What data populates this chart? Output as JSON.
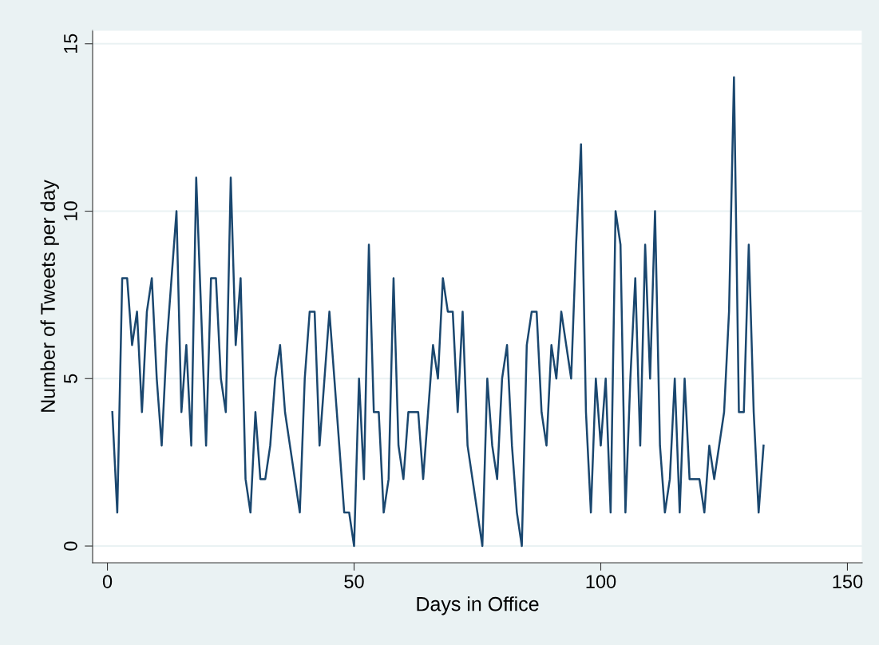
{
  "chart_data": {
    "type": "line",
    "xlabel": "Days in Office",
    "ylabel": "Number of Tweets per day",
    "x": [
      1,
      2,
      3,
      4,
      5,
      6,
      7,
      8,
      9,
      10,
      11,
      12,
      13,
      14,
      15,
      16,
      17,
      18,
      19,
      20,
      21,
      22,
      23,
      24,
      25,
      26,
      27,
      28,
      29,
      30,
      31,
      32,
      33,
      34,
      35,
      36,
      37,
      38,
      39,
      40,
      41,
      42,
      43,
      44,
      45,
      46,
      47,
      48,
      49,
      50,
      51,
      52,
      53,
      54,
      55,
      56,
      57,
      58,
      59,
      60,
      61,
      62,
      63,
      64,
      65,
      66,
      67,
      68,
      69,
      70,
      71,
      72,
      73,
      74,
      75,
      76,
      77,
      78,
      79,
      80,
      81,
      82,
      83,
      84,
      85,
      86,
      87,
      88,
      89,
      90,
      91,
      92,
      93,
      94,
      95,
      96,
      97,
      98,
      99,
      100,
      101,
      102,
      103,
      104,
      105,
      106,
      107,
      108,
      109,
      110,
      111,
      112,
      113,
      114,
      115,
      116,
      117,
      118,
      119,
      120,
      121,
      122,
      123,
      124,
      125,
      126,
      127,
      128,
      129,
      130,
      131,
      132,
      133
    ],
    "series": [
      {
        "color": "#1a476f",
        "values": [
          4,
          1,
          8,
          8,
          6,
          7,
          4,
          7,
          8,
          5,
          3,
          6,
          8,
          10,
          4,
          6,
          3,
          11,
          7,
          3,
          8,
          8,
          5,
          4,
          11,
          6,
          8,
          2,
          1,
          4,
          2,
          2,
          3,
          5,
          6,
          4,
          3,
          2,
          1,
          5,
          7,
          7,
          3,
          5,
          7,
          5,
          3,
          1,
          1,
          0,
          5,
          2,
          9,
          4,
          4,
          1,
          2,
          8,
          3,
          2,
          4,
          4,
          4,
          2,
          4,
          6,
          5,
          8,
          7,
          7,
          4,
          7,
          3,
          2,
          1,
          0,
          5,
          3,
          2,
          5,
          6,
          3,
          1,
          0,
          6,
          7,
          7,
          4,
          3,
          6,
          5,
          7,
          6,
          5,
          9,
          12,
          4,
          1,
          5,
          3,
          5,
          1,
          10,
          9,
          1,
          5,
          8,
          3,
          9,
          5,
          10,
          3,
          1,
          2,
          5,
          1,
          5,
          2,
          2,
          2,
          1,
          3,
          2,
          3,
          4,
          7,
          14,
          4,
          4,
          9,
          4,
          1,
          3
        ]
      }
    ],
    "xlim": [
      -3,
      153
    ],
    "ylim": [
      -0.5,
      15.4
    ],
    "xticks": [
      0,
      50,
      100,
      150
    ],
    "yticks": [
      0,
      5,
      10,
      15
    ],
    "grid": "y",
    "marker": "none",
    "line_style": "solid"
  }
}
